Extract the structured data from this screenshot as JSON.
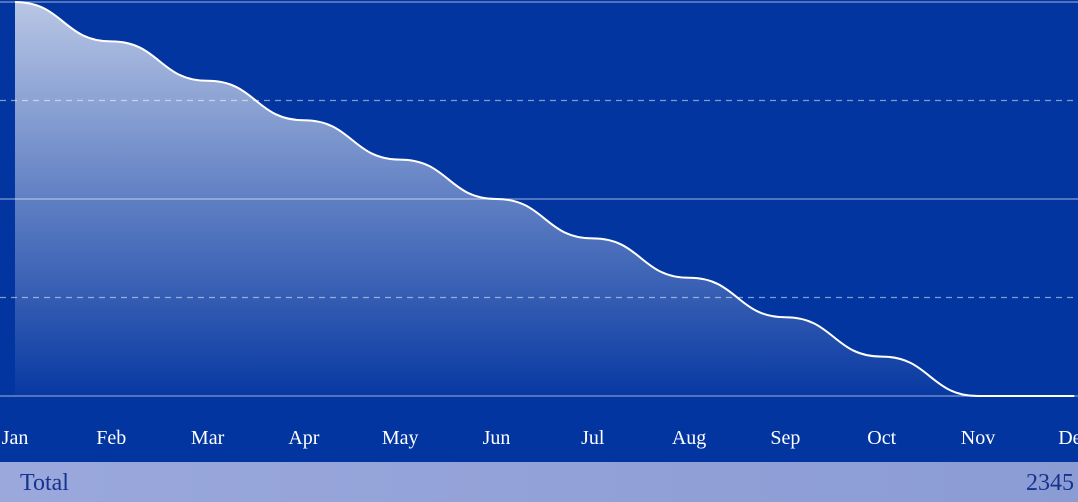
{
  "chart_data": {
    "type": "area",
    "categories": [
      "Jan",
      "Feb",
      "Mar",
      "Apr",
      "May",
      "Jun",
      "Jul",
      "Aug",
      "Sep",
      "Oct",
      "Nov",
      "Dec"
    ],
    "values": [
      100,
      90,
      80,
      70,
      60,
      50,
      40,
      30,
      20,
      10,
      0,
      0
    ],
    "color": "#ffffff",
    "ylim": [
      0,
      100
    ],
    "yticks": [
      0,
      25,
      50,
      75,
      100
    ],
    "grid": true
  },
  "footer": {
    "label": "Total",
    "value": 2345
  }
}
